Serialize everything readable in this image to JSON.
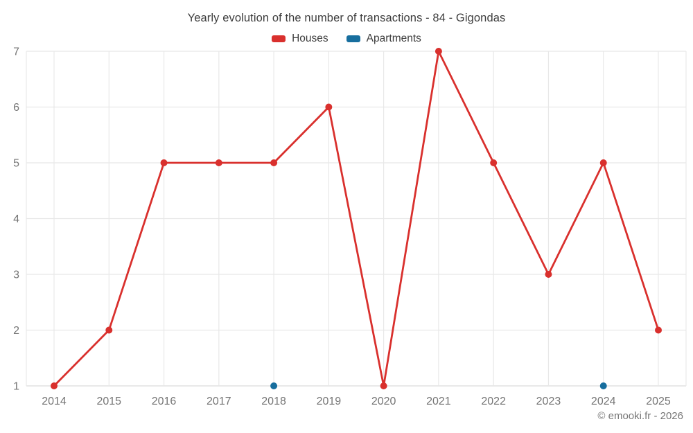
{
  "header": {
    "title": "Yearly evolution of the number of transactions - 84 - Gigondas"
  },
  "footer": {
    "copyright": "© emooki.fr - 2026"
  },
  "colors": {
    "houses": "#d9302d",
    "apartments": "#176e9e",
    "grid": "#e8e8e8",
    "axis_line": "#dcdcdc",
    "axis_text": "#757575",
    "title_text": "#3d3d3d"
  },
  "chart_data": {
    "type": "line",
    "title": "Yearly evolution of the number of transactions - 84 - Gigondas",
    "categories": [
      "2014",
      "2015",
      "2016",
      "2017",
      "2018",
      "2019",
      "2020",
      "2021",
      "2022",
      "2023",
      "2024",
      "2025"
    ],
    "series": [
      {
        "name": "Houses",
        "color": "#d9302d",
        "values": [
          1,
          2,
          5,
          5,
          5,
          6,
          1,
          7,
          5,
          3,
          5,
          2
        ]
      },
      {
        "name": "Apartments",
        "color": "#176e9e",
        "values": [
          null,
          null,
          null,
          null,
          1,
          null,
          null,
          null,
          null,
          null,
          1,
          null
        ]
      }
    ],
    "xlabel": "",
    "ylabel": "",
    "ylim": [
      1,
      7
    ],
    "yticks": [
      1,
      2,
      3,
      4,
      5,
      6,
      7
    ],
    "grid": true,
    "legend_position": "top"
  }
}
